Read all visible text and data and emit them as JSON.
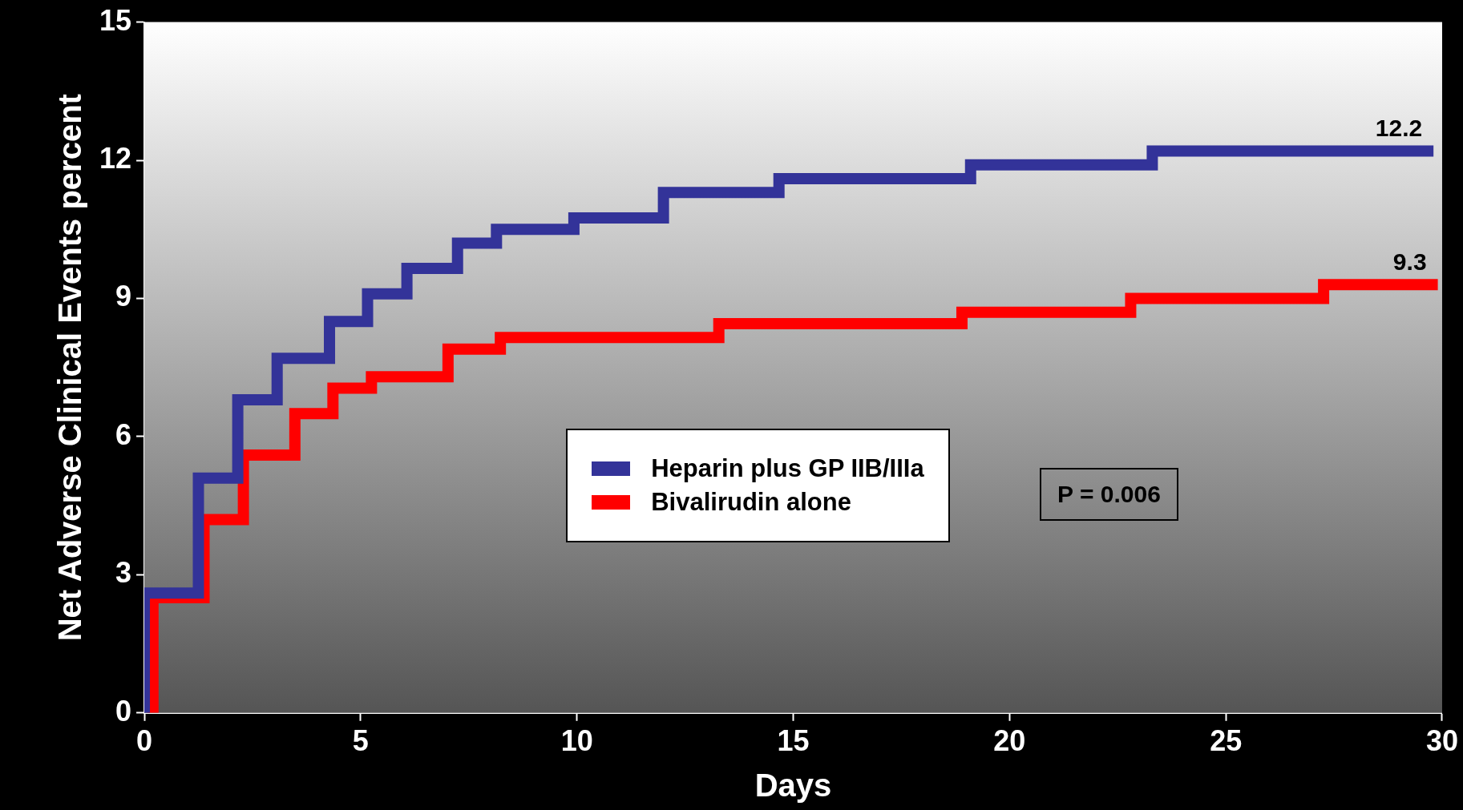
{
  "chart_data": {
    "type": "step",
    "xlabel": "Days",
    "ylabel": "Net Adverse Clinical Events percent",
    "xlim": [
      0,
      30
    ],
    "xticks": [
      0,
      5,
      10,
      15,
      20,
      25,
      30
    ],
    "ylim": [
      0,
      15
    ],
    "yticks": [
      0,
      3,
      6,
      9,
      12,
      15
    ],
    "grid": false,
    "legend": "center",
    "marker": "none",
    "line_style": "solid",
    "series": [
      {
        "name": "Heparin plus GP IIB/IIIa",
        "color": "#333399",
        "x": [
          0,
          0,
          1.25,
          2.16,
          3.07,
          4.28,
          5.16,
          6.07,
          7.24,
          8.14,
          9.93,
          12.0,
          14.67,
          19.1,
          23.3,
          29.8
        ],
        "values": [
          0,
          2.6,
          5.1,
          6.8,
          7.7,
          8.5,
          9.1,
          9.65,
          10.2,
          10.5,
          10.75,
          11.3,
          11.6,
          11.9,
          12.2,
          12.2
        ]
      },
      {
        "name": "Bivalirudin alone",
        "color": "#ff0000",
        "x": [
          0.2,
          0.2,
          1.38,
          2.29,
          3.48,
          4.36,
          5.25,
          7.02,
          8.23,
          13.28,
          18.9,
          22.8,
          27.26,
          29.9
        ],
        "values": [
          0,
          2.5,
          4.2,
          5.6,
          6.5,
          7.05,
          7.3,
          7.9,
          8.15,
          8.45,
          8.7,
          9.0,
          9.3,
          9.3
        ]
      }
    ],
    "annotations": [
      {
        "text": "12.2",
        "x": 29.8,
        "y": 12.2
      },
      {
        "text": "9.3",
        "x": 29.9,
        "y": 9.3
      },
      "P = 0.006"
    ]
  }
}
